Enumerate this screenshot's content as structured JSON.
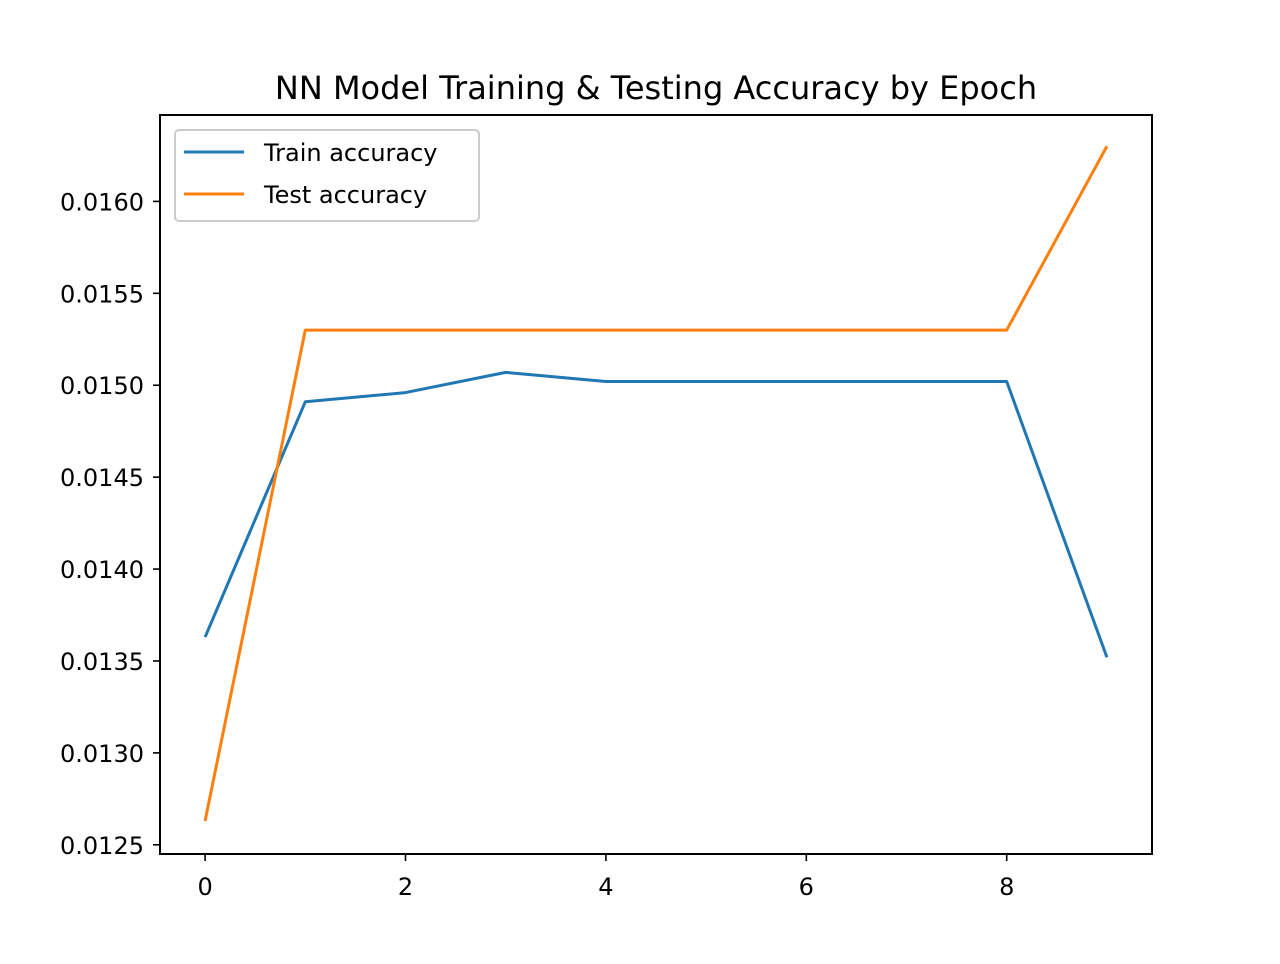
{
  "chart_data": {
    "type": "line",
    "title": "NN Model Training & Testing Accuracy by Epoch",
    "xlabel": "",
    "ylabel": "",
    "x": [
      0,
      1,
      2,
      3,
      4,
      5,
      6,
      7,
      8,
      9
    ],
    "xlim": [
      -0.45,
      9.45
    ],
    "ylim": [
      0.01245,
      0.01647
    ],
    "xticks": [
      0,
      2,
      4,
      6,
      8
    ],
    "xtick_labels": [
      "0",
      "2",
      "4",
      "6",
      "8"
    ],
    "yticks": [
      0.0125,
      0.013,
      0.0135,
      0.014,
      0.0145,
      0.015,
      0.0155,
      0.016
    ],
    "ytick_labels": [
      "0.0125",
      "0.0130",
      "0.0135",
      "0.0140",
      "0.0145",
      "0.0150",
      "0.0155",
      "0.0160"
    ],
    "grid": false,
    "legend_position": "top-left",
    "series": [
      {
        "name": "Train accuracy",
        "color": "#1f77b4",
        "values": [
          0.01363,
          0.01491,
          0.01496,
          0.01507,
          0.01502,
          0.01502,
          0.01502,
          0.01502,
          0.01502,
          0.01352
        ]
      },
      {
        "name": "Test accuracy",
        "color": "#ff7f0e",
        "values": [
          0.01263,
          0.0153,
          0.0153,
          0.0153,
          0.0153,
          0.0153,
          0.0153,
          0.0153,
          0.0153,
          0.0163
        ]
      }
    ]
  }
}
